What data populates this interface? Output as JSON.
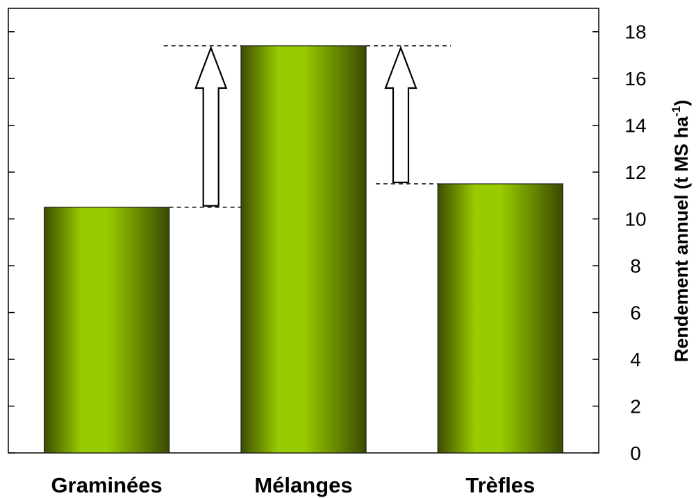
{
  "chart_data": {
    "type": "bar",
    "categories": [
      "Graminées",
      "Mélanges",
      "Trèfles"
    ],
    "values": [
      10.5,
      17.4,
      11.5
    ],
    "title": "",
    "xlabel": "",
    "ylabel": {
      "main": "Rendement annuel (t MS ha",
      "sup": "-1",
      "close": ")"
    },
    "ylim": [
      0,
      19
    ],
    "yticks": [
      "0",
      "2",
      "4",
      "6",
      "8",
      "10",
      "12",
      "14",
      "16",
      "18"
    ],
    "y_axis_side": "right",
    "grid": false,
    "legend": "none",
    "annotations": [
      {
        "type": "increase-arrow",
        "from_category": "Graminées",
        "from_value": 10.5,
        "to_value": 17.4
      },
      {
        "type": "increase-arrow",
        "from_category": "Trèfles",
        "from_value": 11.5,
        "to_value": 17.4
      }
    ],
    "colors": {
      "bar_light": "#99cc00",
      "bar_dark": "#3d4d00",
      "axis": "#000000"
    }
  }
}
